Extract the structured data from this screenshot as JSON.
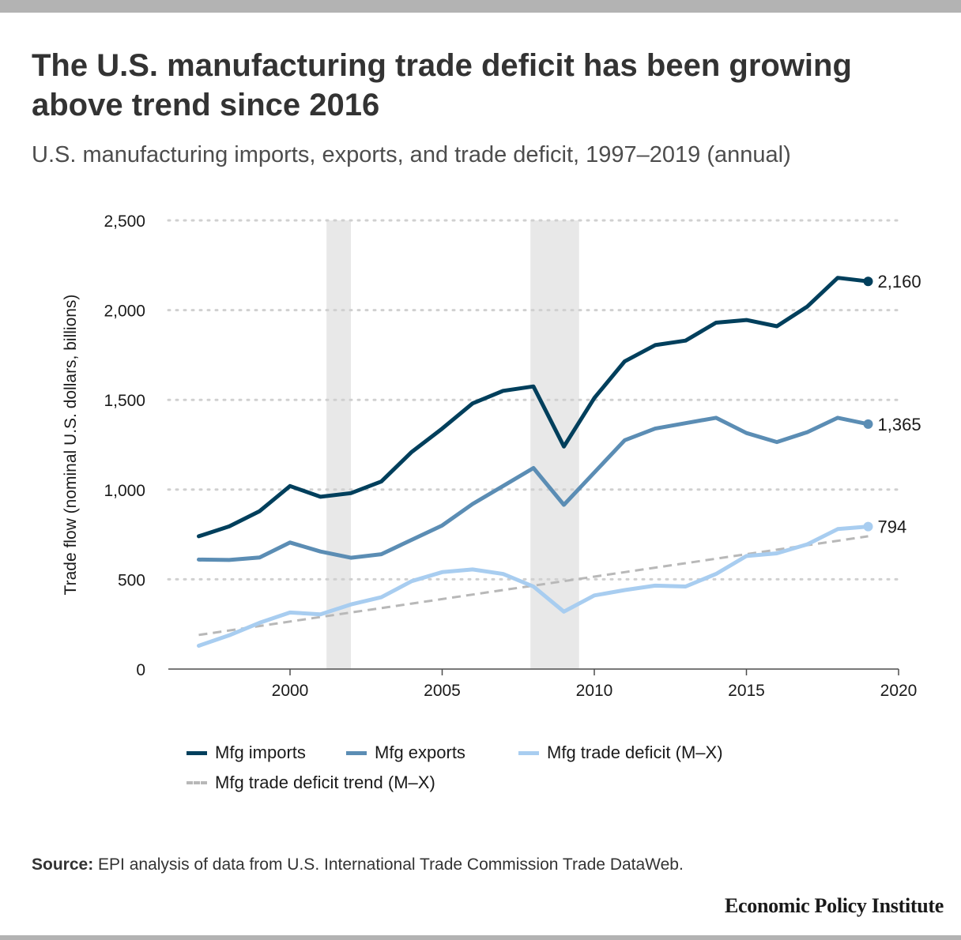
{
  "title": "The U.S. manufacturing trade deficit has been growing above trend since 2016",
  "subtitle": "U.S. manufacturing imports, exports, and trade deficit, 1997–2019 (annual)",
  "source_label": "Source:",
  "source_text": "EPI analysis of data from U.S. International Trade Commission Trade DataWeb.",
  "logo_text": "Economic Policy Institute",
  "colors": {
    "imports": "#003f5c",
    "exports": "#5b8db4",
    "deficit": "#a8cdf0",
    "trend": "#b8b8b8",
    "recession": "#e8e8e8"
  },
  "chart_data": {
    "type": "line",
    "title": "",
    "xlabel": "",
    "ylabel": "Trade flow (nominal U.S. dollars, billions)",
    "xlim": [
      1996,
      2020
    ],
    "ylim": [
      0,
      2500
    ],
    "x_ticks": [
      "2000",
      "2005",
      "2010",
      "2015",
      "2020"
    ],
    "y_ticks": [
      "0",
      "500",
      "1,000",
      "1,500",
      "2,000",
      "2,500"
    ],
    "grid": "horizontal dotted",
    "legend_position": "bottom",
    "recession_bands": [
      [
        2001.2,
        2002.0
      ],
      [
        2007.9,
        2009.5
      ]
    ],
    "x": [
      1997,
      1998,
      1999,
      2000,
      2001,
      2002,
      2003,
      2004,
      2005,
      2006,
      2007,
      2008,
      2009,
      2010,
      2011,
      2012,
      2013,
      2014,
      2015,
      2016,
      2017,
      2018,
      2019
    ],
    "series": [
      {
        "name": "Mfg imports",
        "key": "imports",
        "values": [
          740,
          795,
          880,
          1020,
          960,
          980,
          1045,
          1210,
          1340,
          1480,
          1550,
          1575,
          1240,
          1510,
          1715,
          1805,
          1830,
          1930,
          1945,
          1910,
          2020,
          2180,
          2160
        ],
        "end_label": "2,160"
      },
      {
        "name": "Mfg exports",
        "key": "exports",
        "values": [
          610,
          608,
          622,
          705,
          655,
          620,
          640,
          720,
          800,
          920,
          1020,
          1120,
          915,
          1095,
          1275,
          1340,
          1370,
          1400,
          1315,
          1265,
          1320,
          1400,
          1365
        ],
        "end_label": "1,365"
      },
      {
        "name": "Mfg trade deficit (M–X)",
        "key": "deficit",
        "values": [
          130,
          188,
          258,
          315,
          305,
          360,
          400,
          490,
          540,
          555,
          530,
          460,
          320,
          410,
          440,
          465,
          460,
          530,
          630,
          645,
          695,
          780,
          794
        ],
        "end_label": "794"
      },
      {
        "name": "Mfg trade deficit trend (M–X)",
        "key": "trend",
        "dashed": true,
        "values": [
          190,
          215,
          240,
          265,
          290,
          315,
          340,
          365,
          390,
          415,
          440,
          465,
          490,
          515,
          540,
          565,
          590,
          615,
          640,
          665,
          690,
          715,
          740
        ]
      }
    ]
  }
}
